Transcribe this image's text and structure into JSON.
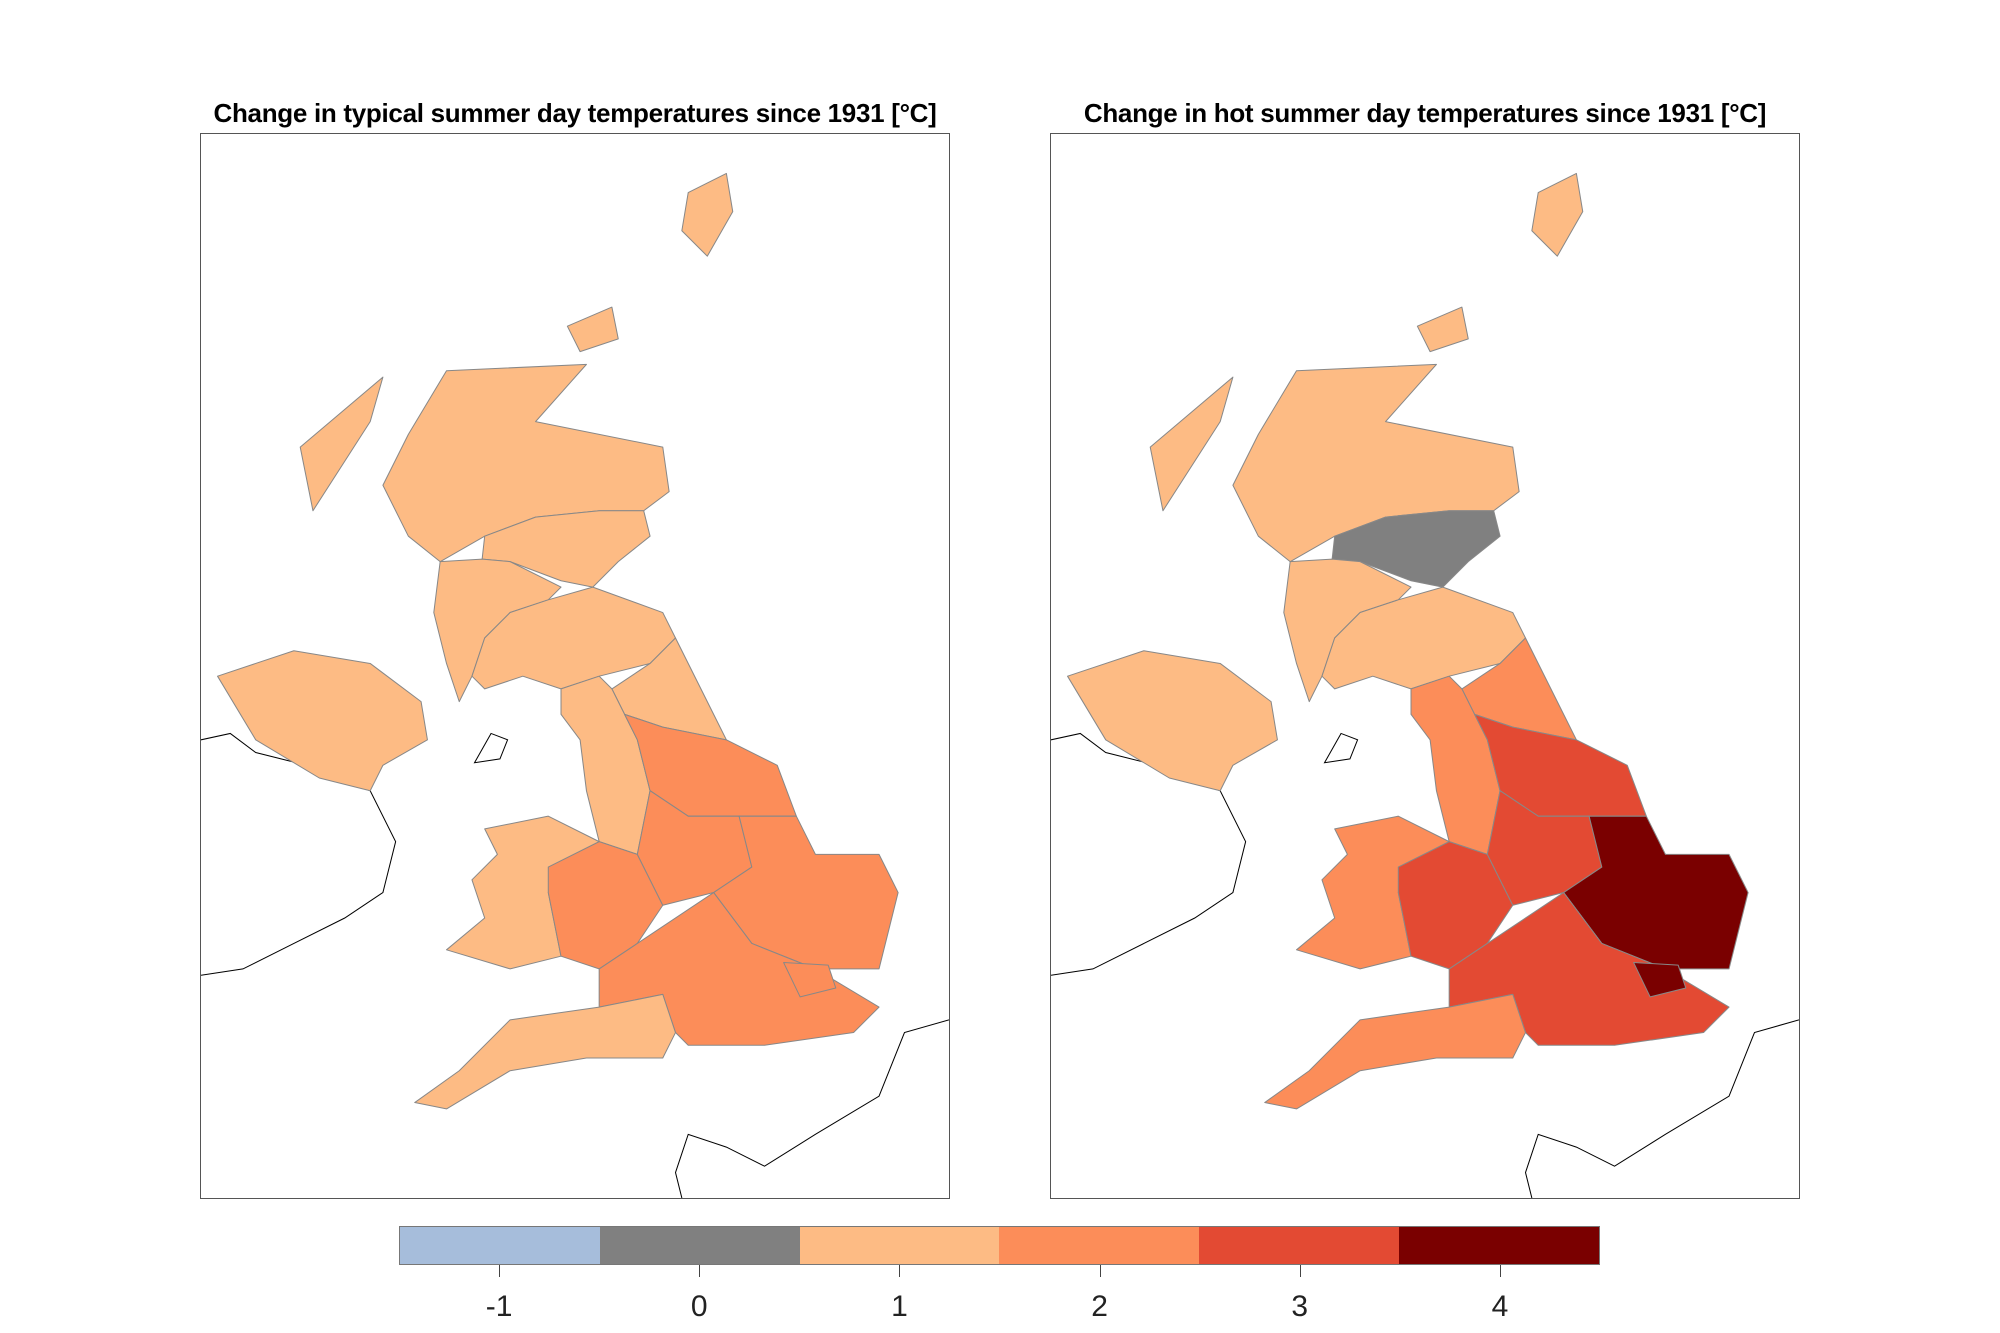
{
  "panels": [
    {
      "title": "Change in typical summer day temperatures since 1931 [°C]",
      "region_values": {
        "scot_n": 1,
        "scot_e": 1,
        "scot_w": 1,
        "scot_s": 1,
        "ne": 1,
        "nw": 1,
        "yorks": 2,
        "wales": 1,
        "wmid": 2,
        "emid": 2,
        "east": 2,
        "sw": 1,
        "se": 2,
        "london": 2,
        "ni": 1
      }
    },
    {
      "title": "Change in hot summer day temperatures since 1931 [°C]",
      "region_values": {
        "scot_n": 1,
        "scot_e": 0,
        "scot_w": 1,
        "scot_s": 1,
        "ne": 2,
        "nw": 2,
        "yorks": 3,
        "wales": 2,
        "wmid": 3,
        "emid": 3,
        "east": 4,
        "sw": 2,
        "se": 3,
        "london": 4,
        "ni": 1
      }
    }
  ],
  "colorbar": {
    "ticks": [
      "-1",
      "0",
      "1",
      "2",
      "3",
      "4"
    ],
    "values": [
      -1,
      0,
      1,
      2,
      3,
      4
    ],
    "colors": [
      "#a6bddb",
      "#808080",
      "#fdbb84",
      "#fc8d59",
      "#e34a33",
      "#7a0000"
    ]
  }
}
